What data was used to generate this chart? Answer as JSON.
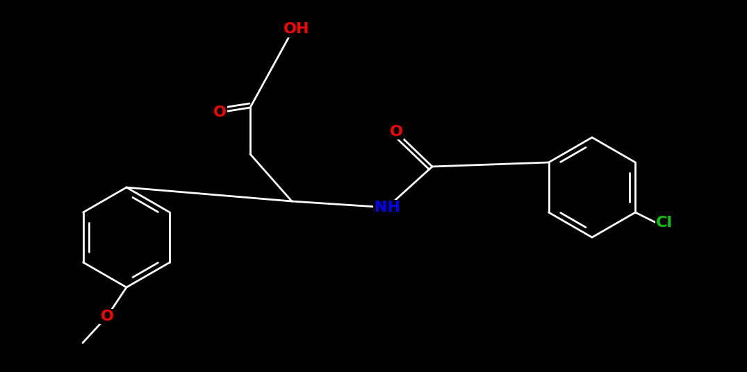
{
  "bg": "#000000",
  "bond_color": "#ffffff",
  "lw": 2.0,
  "fig_w": 10.75,
  "fig_h": 5.36,
  "colors": {
    "O": "#FF0000",
    "N": "#0000FF",
    "Cl": "#00CC00",
    "C": "#ffffff",
    "H": "#ffffff"
  },
  "font_size": 16,
  "font_weight": "bold"
}
